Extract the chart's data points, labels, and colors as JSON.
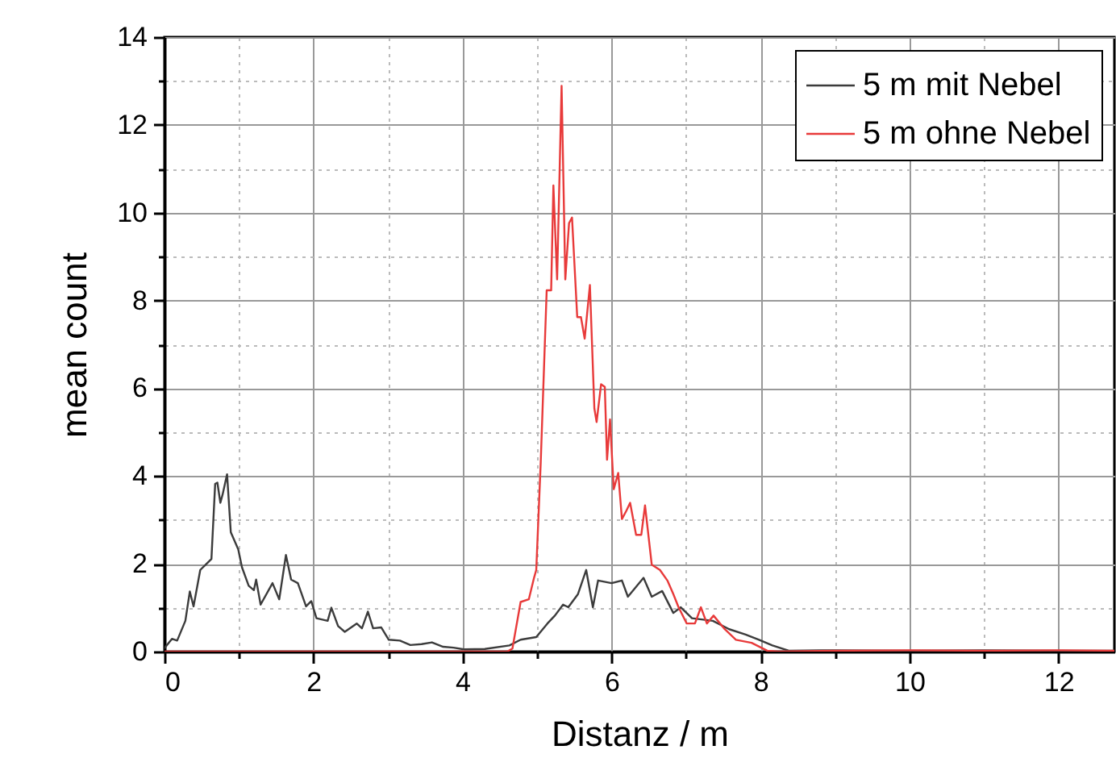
{
  "chart_data": {
    "type": "line",
    "xlabel": "Distanz / m",
    "ylabel": "mean count",
    "xlim": [
      0,
      12.75
    ],
    "ylim": [
      0,
      14
    ],
    "xticks": [
      0,
      {
        "value": 1,
        "label": null
      },
      2,
      {
        "value": 3,
        "label": null
      },
      4,
      {
        "value": 5,
        "label": null
      },
      6,
      {
        "value": 7,
        "label": null
      },
      8,
      {
        "value": 9,
        "label": null
      },
      10,
      {
        "value": 11,
        "label": null
      },
      12
    ],
    "yticks": [
      0,
      {
        "value": 1,
        "label": null
      },
      2,
      {
        "value": 3,
        "label": null
      },
      4,
      {
        "value": 5,
        "label": null
      },
      6,
      {
        "value": 7,
        "label": null
      },
      8,
      {
        "value": 9,
        "label": null
      },
      10,
      {
        "value": 11,
        "label": null
      },
      12,
      {
        "value": 13,
        "label": null
      },
      14
    ],
    "grid": true,
    "legend": "top right",
    "line_style": "solid",
    "marker": "none",
    "series": [
      {
        "name": "5 m mit Nebel",
        "color": "#3c3c3c",
        "x": [
          0,
          0.1,
          0.17,
          0.28,
          0.34,
          0.39,
          0.48,
          0.57,
          0.63,
          0.68,
          0.71,
          0.75,
          0.78,
          0.84,
          0.89,
          0.99,
          1.04,
          1.13,
          1.2,
          1.23,
          1.29,
          1.45,
          1.54,
          1.63,
          1.7,
          1.79,
          1.9,
          1.97,
          2.04,
          2.19,
          2.24,
          2.33,
          2.42,
          2.58,
          2.65,
          2.73,
          2.8,
          2.91,
          3.01,
          3.16,
          3.3,
          3.45,
          3.59,
          3.74,
          3.88,
          4.02,
          4.3,
          4.63,
          4.78,
          4.99,
          5.14,
          5.24,
          5.35,
          5.42,
          5.55,
          5.66,
          5.75,
          5.82,
          6.0,
          6.14,
          6.22,
          6.43,
          6.54,
          6.68,
          6.83,
          6.93,
          7.08,
          7.36,
          7.58,
          7.8,
          7.98,
          8.16,
          8.38,
          9.0,
          10.0,
          11.0,
          12.0,
          12.75
        ],
        "values": [
          0.08,
          0.29,
          0.25,
          0.7,
          1.37,
          1.03,
          1.86,
          2.01,
          2.11,
          3.82,
          3.85,
          3.39,
          3.58,
          4.04,
          2.72,
          2.33,
          1.92,
          1.5,
          1.4,
          1.64,
          1.07,
          1.56,
          1.19,
          2.2,
          1.64,
          1.56,
          1.03,
          1.15,
          0.76,
          0.7,
          1.0,
          0.58,
          0.45,
          0.64,
          0.53,
          0.91,
          0.53,
          0.55,
          0.27,
          0.25,
          0.15,
          0.17,
          0.21,
          0.11,
          0.09,
          0.05,
          0.06,
          0.14,
          0.27,
          0.33,
          0.64,
          0.82,
          1.07,
          1.01,
          1.31,
          1.86,
          1.01,
          1.62,
          1.56,
          1.62,
          1.25,
          1.68,
          1.25,
          1.38,
          0.88,
          1.01,
          0.76,
          0.7,
          0.51,
          0.39,
          0.27,
          0.14,
          0.02,
          0.03,
          0.02,
          0.03,
          0.02,
          0.02
        ]
      },
      {
        "name": "5 m ohne Nebel",
        "color": "#e83a3a",
        "x": [
          0,
          4.6,
          4.67,
          4.78,
          4.89,
          4.96,
          4.99,
          5.05,
          5.13,
          5.19,
          5.22,
          5.27,
          5.33,
          5.38,
          5.43,
          5.47,
          5.54,
          5.59,
          5.64,
          5.71,
          5.77,
          5.8,
          5.86,
          5.91,
          5.94,
          5.98,
          6.03,
          6.09,
          6.14,
          6.2,
          6.25,
          6.33,
          6.4,
          6.45,
          6.54,
          6.65,
          6.75,
          6.83,
          6.9,
          7.01,
          7.12,
          7.2,
          7.28,
          7.37,
          7.52,
          7.67,
          7.88,
          8.09,
          8.24,
          9.0,
          10.0,
          11.0,
          12.0,
          12.75
        ],
        "values": [
          0,
          0,
          0.07,
          1.13,
          1.19,
          1.68,
          1.86,
          4.31,
          8.23,
          8.23,
          10.62,
          8.48,
          12.89,
          8.48,
          9.76,
          9.89,
          7.62,
          7.62,
          7.13,
          8.35,
          5.54,
          5.23,
          6.09,
          6.03,
          4.37,
          5.29,
          3.7,
          4.07,
          3.02,
          3.21,
          3.39,
          2.66,
          2.66,
          3.33,
          1.98,
          1.86,
          1.62,
          1.31,
          1.01,
          0.64,
          0.64,
          1.01,
          0.64,
          0.82,
          0.51,
          0.27,
          0.2,
          0.02,
          0,
          0.02,
          0.03,
          0.02,
          0.03,
          0.02
        ]
      }
    ]
  }
}
